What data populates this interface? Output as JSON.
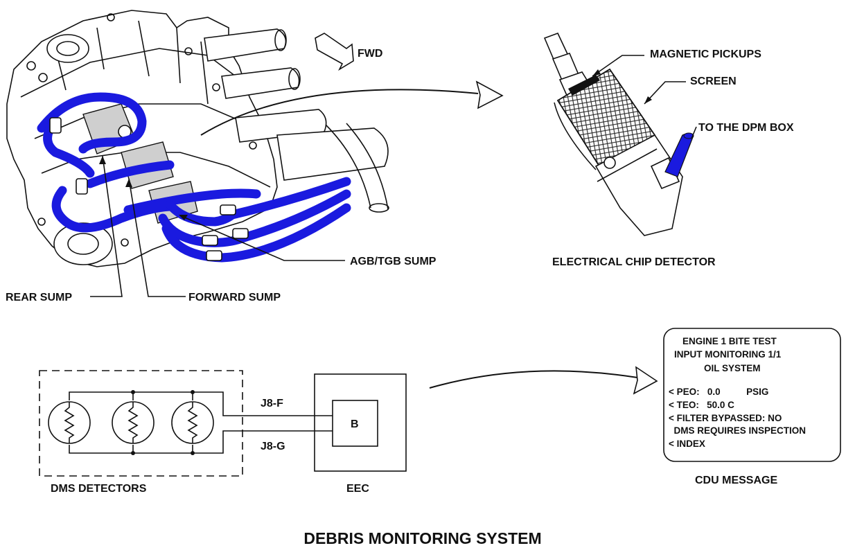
{
  "title": "DEBRIS MONITORING SYSTEM",
  "colors": {
    "hose": "#1a1adf",
    "line": "#111111",
    "sump": "#cfcfcf"
  },
  "engine_view": {
    "fwd_label": "FWD",
    "labels": {
      "rear_sump": "REAR SUMP",
      "forward_sump": "FORWARD SUMP",
      "agb_tgb_sump": "AGB/TGB SUMP"
    }
  },
  "chip_detector": {
    "caption": "ELECTRICAL CHIP DETECTOR",
    "labels": {
      "magnetic_pickups": "MAGNETIC PICKUPS",
      "screen": "SCREEN",
      "to_dpm_box": "TO THE DPM BOX"
    }
  },
  "schematic": {
    "detectors_label": "DMS DETECTORS",
    "eec_label": "EEC",
    "connector_top": "J8-F",
    "connector_bottom": "J8-G",
    "terminal": "B"
  },
  "cdu": {
    "caption": "CDU MESSAGE",
    "lines": [
      "ENGINE 1 BITE TEST",
      "INPUT MONITORING 1/1",
      "OIL SYSTEM",
      "< PEO:   0.0          PSIG",
      "< TEO:   50.0 C",
      "< FILTER BYPASSED: NO",
      "  DMS REQUIRES INSPECTION",
      "< INDEX"
    ]
  }
}
